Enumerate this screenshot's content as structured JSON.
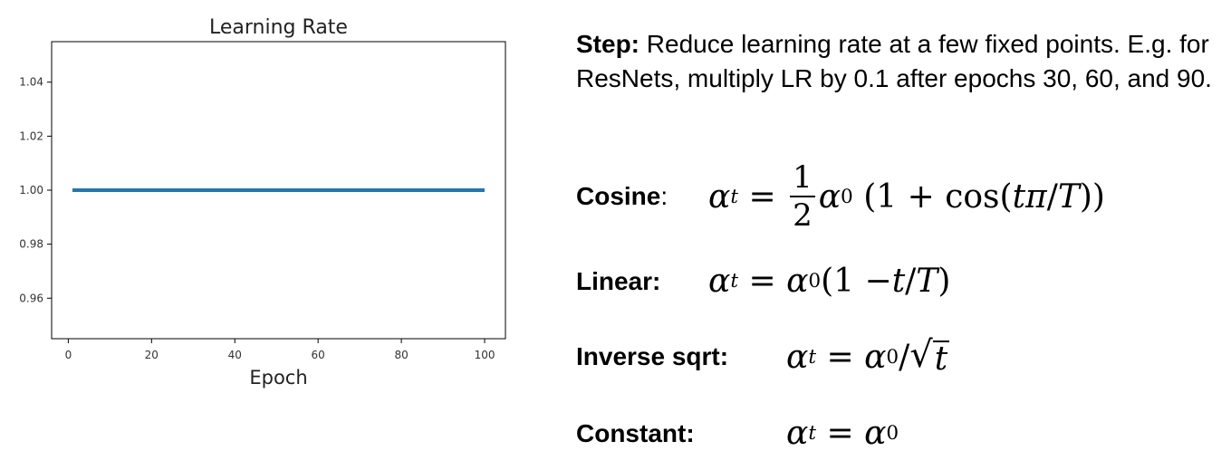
{
  "chart_data": {
    "type": "line",
    "title": "Learning Rate",
    "xlabel": "Epoch",
    "ylabel": "",
    "xlim": [
      -4,
      105
    ],
    "ylim": [
      0.945,
      1.055
    ],
    "x_ticks": [
      0,
      20,
      40,
      60,
      80,
      100
    ],
    "y_ticks": [
      0.96,
      0.98,
      1.0,
      1.02,
      1.04
    ],
    "y_tick_labels": [
      "0.96",
      "0.98",
      "1.00",
      "1.02",
      "1.04"
    ],
    "grid": false,
    "series": [
      {
        "x": [
          1,
          100
        ],
        "y": [
          1.0,
          1.0
        ],
        "color": "#1f77b4"
      }
    ]
  },
  "text": {
    "step_label": "Step:",
    "step_text": " Reduce learning rate at a few fixed points. E.g. for ResNets, multiply LR by 0.1 after epochs 30, 60, and 90.",
    "cosine_label": "Cosine",
    "cosine_colon": ":",
    "linear_label": "Linear:",
    "inverse_label": "Inverse sqrt:",
    "constant_label": "Constant:"
  }
}
